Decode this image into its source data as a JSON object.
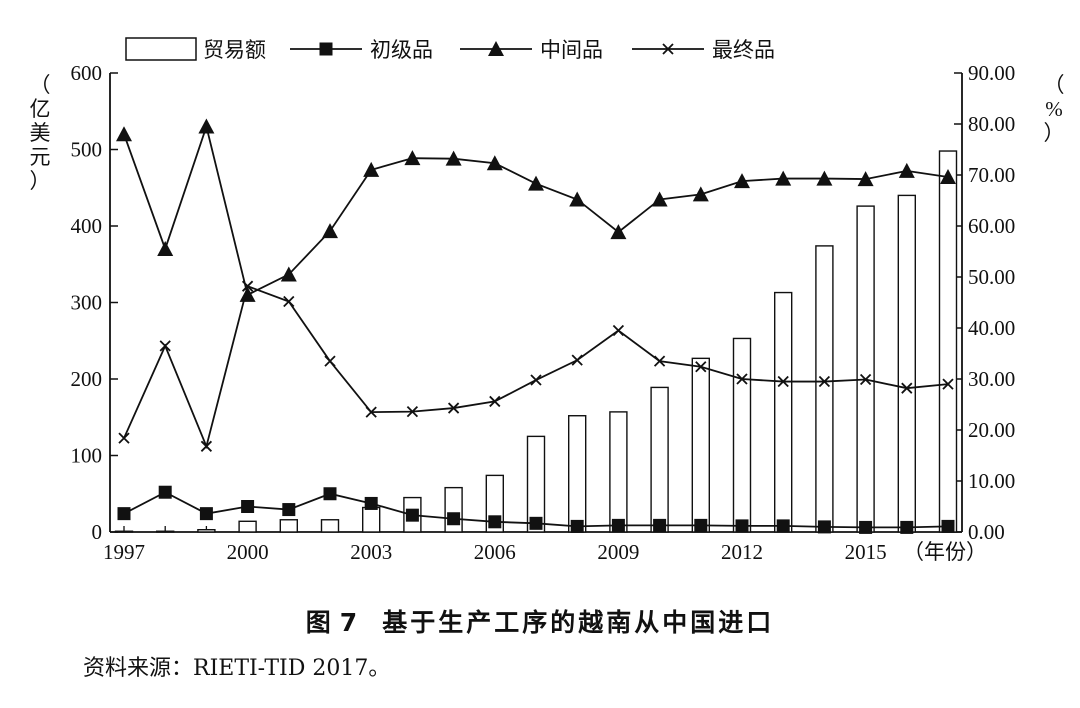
{
  "chart_data": {
    "type": "bar+line",
    "title": "基于生产工序的越南从中国进口",
    "x": [
      1997,
      1998,
      1999,
      2000,
      2001,
      2002,
      2003,
      2004,
      2005,
      2006,
      2007,
      2008,
      2009,
      2010,
      2011,
      2012,
      2013,
      2014,
      2015,
      2016,
      2017
    ],
    "x_tick_labels": [
      "1997",
      "2000",
      "2003",
      "2006",
      "2009",
      "2012",
      "2015"
    ],
    "xlabel_suffix": "（年份）",
    "ylabel_left": "（亿美元）",
    "ylabel_right": "（%）",
    "ylim_left": [
      0,
      600
    ],
    "ylim_right": [
      0,
      90
    ],
    "left_ticks": [
      "0",
      "100",
      "200",
      "300",
      "400",
      "500",
      "600"
    ],
    "right_ticks": [
      "0.00",
      "10.00",
      "20.00",
      "30.00",
      "40.00",
      "50.00",
      "60.00",
      "70.00",
      "80.00",
      "90.00"
    ],
    "bars": {
      "name": "贸易额",
      "axis": "left",
      "values": [
        1,
        1,
        3,
        14,
        16,
        16,
        32,
        45,
        58,
        74,
        125,
        152,
        157,
        189,
        227,
        253,
        313,
        374,
        426,
        440,
        498
      ]
    },
    "series": [
      {
        "name": "初级品",
        "axis": "right",
        "marker": "square",
        "values": [
          3.6,
          7.8,
          3.6,
          5.0,
          4.4,
          7.5,
          5.6,
          3.3,
          2.6,
          2.0,
          1.7,
          1.1,
          1.3,
          1.3,
          1.3,
          1.2,
          1.2,
          1.0,
          0.9,
          0.9,
          1.1
        ]
      },
      {
        "name": "中间品",
        "axis": "right",
        "marker": "triangle",
        "values": [
          78,
          55.5,
          79.5,
          46.5,
          50.5,
          59,
          71,
          73.3,
          73.2,
          72.3,
          68.3,
          65.2,
          58.8,
          65.2,
          66.2,
          68.8,
          69.3,
          69.3,
          69.2,
          70.8,
          69.6
        ]
      },
      {
        "name": "最终品",
        "axis": "right",
        "marker": "x",
        "values": [
          18.4,
          36.5,
          16.8,
          48.2,
          45.2,
          33.5,
          23.5,
          23.6,
          24.3,
          25.6,
          29.8,
          33.7,
          39.5,
          33.5,
          32.4,
          30,
          29.5,
          29.5,
          29.9,
          28.2,
          29
        ]
      }
    ]
  },
  "caption": {
    "prefix": "图",
    "number": "7",
    "text": "基于生产工序的越南从中国进口"
  },
  "source": "资料来源：RIETI-TID 2017。"
}
